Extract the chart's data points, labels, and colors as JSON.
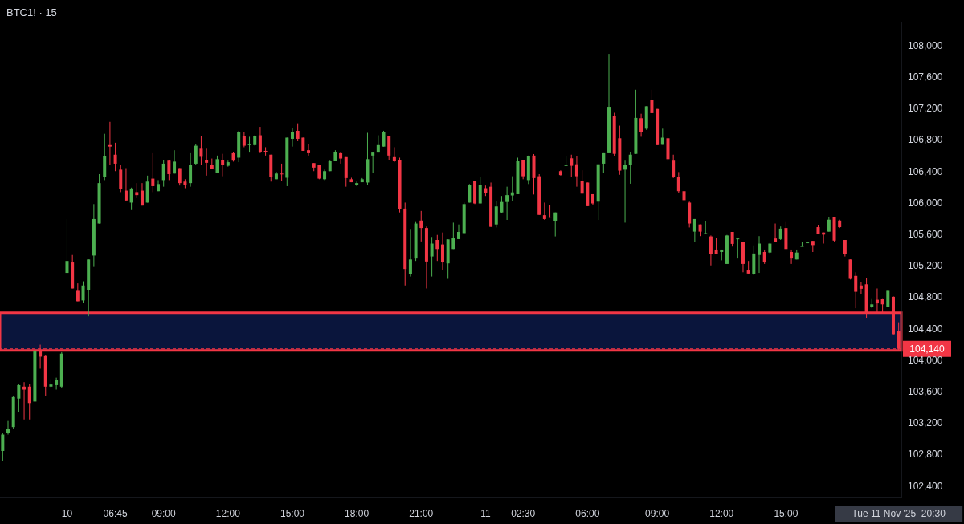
{
  "chart_data": {
    "type": "candlestick",
    "title": "BTC1! · 15",
    "categories": [
      null,
      null,
      null,
      null,
      null,
      null,
      null,
      null,
      null,
      null,
      null,
      null,
      "10",
      null,
      null,
      null,
      null,
      null,
      null,
      null,
      null,
      "06:45",
      null,
      null,
      null,
      null,
      null,
      null,
      null,
      null,
      "09:00",
      null,
      null,
      null,
      null,
      null,
      null,
      null,
      null,
      null,
      null,
      null,
      "12:00",
      null,
      null,
      null,
      null,
      null,
      null,
      null,
      null,
      null,
      null,
      null,
      "15:00",
      null,
      null,
      null,
      null,
      null,
      null,
      null,
      null,
      null,
      null,
      null,
      "18:00",
      null,
      null,
      null,
      null,
      null,
      null,
      null,
      null,
      null,
      null,
      null,
      "21:00",
      null,
      null,
      null,
      null,
      null,
      null,
      null,
      null,
      null,
      null,
      null,
      "11",
      null,
      null,
      null,
      null,
      null,
      null,
      "02:30",
      null,
      null,
      null,
      null,
      null,
      null,
      null,
      null,
      null,
      null,
      null,
      "06:00",
      null,
      null,
      null,
      null,
      null,
      null,
      null,
      null,
      null,
      null,
      null,
      null,
      "09:00",
      null,
      null,
      null,
      null,
      null,
      null,
      null,
      null,
      null,
      null,
      null,
      "12:00",
      null,
      null,
      null,
      null,
      null,
      null,
      null,
      null,
      null,
      null,
      null,
      "15:00",
      null,
      null,
      null,
      null,
      null,
      null,
      null,
      null,
      null,
      null,
      null,
      null,
      null,
      null,
      null,
      null,
      null,
      null,
      null,
      null,
      "Tue 11 Nov '25  20:30"
    ],
    "ohlc": [
      [
        102842,
        103070,
        102709,
        103051
      ],
      [
        103070,
        103223,
        103051,
        103127
      ],
      [
        103146,
        103546,
        103127,
        103527
      ],
      [
        103508,
        103698,
        103337,
        103679
      ],
      [
        103660,
        103717,
        103242,
        103622
      ],
      [
        103660,
        103698,
        103242,
        103451
      ],
      [
        103470,
        104136,
        103470,
        104117
      ],
      [
        104117,
        104193,
        103888,
        104041
      ],
      [
        104048,
        104060,
        103546,
        103660
      ],
      [
        103660,
        103755,
        103641,
        103687
      ],
      [
        103679,
        103774,
        103622,
        103744
      ],
      [
        103660,
        104098,
        103641,
        104079
      ],
      [
        105106,
        105791,
        105106,
        105258
      ],
      [
        105239,
        105334,
        104908,
        104908
      ],
      [
        104878,
        104973,
        104745,
        104745
      ],
      [
        104756,
        104999,
        104726,
        104946
      ],
      [
        104885,
        105277,
        104554,
        105277
      ],
      [
        105327,
        105981,
        105182,
        105791
      ],
      [
        105734,
        106362,
        105734,
        106248
      ],
      [
        106324,
        106875,
        106286,
        106590
      ],
      [
        106731,
        107027,
        106476,
        106712
      ],
      [
        106609,
        106761,
        106400,
        106495
      ],
      [
        106419,
        106476,
        106133,
        106171
      ],
      [
        106152,
        106438,
        106019,
        106027
      ],
      [
        106000,
        106190,
        105905,
        106179
      ],
      [
        106133,
        106248,
        106057,
        106095
      ],
      [
        106152,
        106248,
        105962,
        105962
      ],
      [
        106000,
        106343,
        106000,
        106267
      ],
      [
        106305,
        106628,
        106133,
        106209
      ],
      [
        106145,
        106286,
        106145,
        106236
      ],
      [
        106286,
        106544,
        106202,
        106495
      ],
      [
        106533,
        106544,
        106286,
        106362
      ],
      [
        106369,
        106666,
        106369,
        106521
      ],
      [
        106438,
        106438,
        106217,
        106248
      ],
      [
        106267,
        106297,
        106183,
        106221
      ],
      [
        106248,
        106628,
        106202,
        106483
      ],
      [
        106495,
        106742,
        106476,
        106723
      ],
      [
        106685,
        106849,
        106483,
        106582
      ],
      [
        106540,
        106685,
        106343,
        106506
      ],
      [
        106476,
        106560,
        106426,
        106426
      ],
      [
        106381,
        106598,
        106381,
        106552
      ],
      [
        106540,
        106620,
        106335,
        106476
      ],
      [
        106468,
        106533,
        106457,
        106514
      ],
      [
        106628,
        106647,
        106521,
        106533
      ],
      [
        106571,
        106913,
        106514,
        106894
      ],
      [
        106849,
        106894,
        106704,
        106723
      ],
      [
        106731,
        106837,
        106636,
        106742
      ],
      [
        106731,
        106856,
        106723,
        106849
      ],
      [
        106856,
        106963,
        106628,
        106647
      ],
      [
        106658,
        106704,
        106598,
        106639
      ],
      [
        106609,
        106609,
        106267,
        106324
      ],
      [
        106297,
        106392,
        106297,
        106369
      ],
      [
        106369,
        106495,
        106278,
        106362
      ],
      [
        106316,
        106826,
        106209,
        106826
      ],
      [
        106811,
        106951,
        106712,
        106894
      ],
      [
        106913,
        107008,
        106780,
        106811
      ],
      [
        106826,
        106826,
        106658,
        106658
      ],
      [
        106666,
        106742,
        106598,
        106628
      ],
      [
        106502,
        106502,
        106400,
        106445
      ],
      [
        106476,
        106476,
        106297,
        106305
      ],
      [
        106297,
        106419,
        106286,
        106400
      ],
      [
        106400,
        106533,
        106400,
        106525
      ],
      [
        106525,
        106666,
        106525,
        106647
      ],
      [
        106628,
        106647,
        106495,
        106560
      ],
      [
        106578,
        106578,
        106202,
        106312
      ],
      [
        106297,
        106316,
        106259,
        106259
      ],
      [
        106229,
        106267,
        106209,
        106248
      ],
      [
        106259,
        106312,
        106259,
        106297
      ],
      [
        106255,
        106887,
        106229,
        106552
      ],
      [
        106598,
        106647,
        106381,
        106636
      ],
      [
        106636,
        106856,
        106636,
        106731
      ],
      [
        106712,
        106913,
        106712,
        106902
      ],
      [
        106845,
        106845,
        106544,
        106598
      ],
      [
        106578,
        106704,
        106514,
        106525
      ],
      [
        106544,
        106571,
        105875,
        105913
      ],
      [
        105924,
        106000,
        104946,
        105156
      ],
      [
        105087,
        105665,
        105060,
        105277
      ],
      [
        105289,
        105753,
        105258,
        105734
      ],
      [
        105772,
        105894,
        105506,
        105677
      ],
      [
        105677,
        105696,
        104908,
        105251
      ],
      [
        105315,
        105563,
        105060,
        105479
      ],
      [
        105525,
        105589,
        105258,
        105410
      ],
      [
        105468,
        105620,
        105144,
        105239
      ],
      [
        105227,
        105532,
        105030,
        105532
      ],
      [
        105410,
        105745,
        105410,
        105555
      ],
      [
        105536,
        105722,
        105536,
        105627
      ],
      [
        105612,
        106000,
        105612,
        105981
      ],
      [
        106000,
        106236,
        106000,
        106228
      ],
      [
        106278,
        106278,
        105981,
        105989
      ],
      [
        105989,
        106331,
        105989,
        106221
      ],
      [
        106183,
        106217,
        106084,
        106122
      ],
      [
        106202,
        106255,
        105692,
        105692
      ],
      [
        105722,
        106019,
        105684,
        105951
      ],
      [
        105875,
        106084,
        105867,
        106008
      ],
      [
        106008,
        106202,
        105780,
        106095
      ],
      [
        106091,
        106335,
        106019,
        106130
      ],
      [
        106107,
        106571,
        106107,
        106525
      ],
      [
        106544,
        106544,
        106297,
        106335
      ],
      [
        106286,
        106598,
        106236,
        106590
      ],
      [
        106598,
        106617,
        106103,
        106312
      ],
      [
        106335,
        106362,
        105844,
        105844
      ],
      [
        105840,
        106000,
        105780,
        105791
      ],
      [
        105821,
        105970,
        105806,
        105810
      ],
      [
        105768,
        105875,
        105570,
        105875
      ],
      [
        106400,
        106411,
        106343,
        106350
      ],
      [
        106468,
        106590,
        106468,
        106476
      ],
      [
        106563,
        106609,
        106331,
        106468
      ],
      [
        106487,
        106590,
        106202,
        106335
      ],
      [
        106278,
        106411,
        106114,
        106114
      ],
      [
        106255,
        106255,
        105955,
        105955
      ],
      [
        106107,
        106107,
        105974,
        105989
      ],
      [
        106012,
        106487,
        105780,
        106487
      ],
      [
        106495,
        106628,
        106381,
        106628
      ],
      [
        106628,
        107891,
        106628,
        107218
      ],
      [
        107104,
        107142,
        106590,
        106620
      ],
      [
        106818,
        106978,
        106354,
        106407
      ],
      [
        106419,
        106533,
        105745,
        106476
      ],
      [
        106476,
        106647,
        106240,
        106609
      ],
      [
        106620,
        107435,
        106620,
        107077
      ],
      [
        107073,
        107130,
        106837,
        106894
      ],
      [
        106940,
        107225,
        106925,
        107225
      ],
      [
        107301,
        107435,
        107138,
        107138
      ],
      [
        107191,
        107191,
        106731,
        106731
      ],
      [
        106735,
        106940,
        106735,
        106826
      ],
      [
        106818,
        106837,
        106521,
        106552
      ],
      [
        106533,
        106609,
        106312,
        106331
      ],
      [
        106331,
        106388,
        106126,
        106145
      ],
      [
        106145,
        106145,
        106008,
        106031
      ],
      [
        106000,
        106012,
        105684,
        105734
      ],
      [
        105631,
        105791,
        105498,
        105791
      ],
      [
        105722,
        105722,
        105574,
        105631
      ],
      [
        105608,
        105764,
        105608,
        105612
      ],
      [
        105570,
        105582,
        105201,
        105346
      ],
      [
        105403,
        105555,
        105346,
        105346
      ],
      [
        105372,
        105403,
        105266,
        105403
      ],
      [
        105220,
        105589,
        105220,
        105582
      ],
      [
        105627,
        105627,
        105441,
        105475
      ],
      [
        105540,
        105544,
        105289,
        105544
      ],
      [
        105498,
        105498,
        105114,
        105220
      ],
      [
        105137,
        105258,
        105087,
        105098
      ],
      [
        105087,
        105456,
        105076,
        105353
      ],
      [
        105334,
        105574,
        105106,
        105479
      ],
      [
        105372,
        105403,
        105220,
        105239
      ],
      [
        105365,
        105487,
        105353,
        105479
      ],
      [
        105544,
        105734,
        105498,
        105498
      ],
      [
        105536,
        105696,
        105525,
        105669
      ],
      [
        105677,
        105753,
        105410,
        105410
      ],
      [
        105372,
        105403,
        105220,
        105289
      ],
      [
        105277,
        105403,
        105277,
        105365
      ],
      [
        105441,
        105498,
        105441,
        105448
      ],
      [
        105490,
        105498,
        105487,
        105494
      ],
      [
        105513,
        105513,
        105372,
        105460
      ],
      [
        105688,
        105715,
        105601,
        105601
      ],
      [
        105620,
        105620,
        105479,
        105593
      ],
      [
        105631,
        105821,
        105631,
        105783
      ],
      [
        105821,
        105821,
        105506,
        105517
      ],
      [
        105772,
        105783,
        105677,
        105688
      ],
      [
        105525,
        105525,
        105315,
        105346
      ],
      [
        105277,
        105277,
        105022,
        105030
      ],
      [
        105068,
        105114,
        104657,
        104866
      ],
      [
        104946,
        104992,
        104832,
        104904
      ],
      [
        104961,
        105037,
        104535,
        104592
      ],
      [
        104668,
        104783,
        104657,
        104706
      ],
      [
        104764,
        104908,
        104592,
        104718
      ],
      [
        104775,
        104783,
        104592,
        104706
      ],
      [
        104668,
        104885,
        104668,
        104878
      ],
      [
        104802,
        104809,
        104315,
        104326
      ],
      [
        104364,
        104478,
        104120,
        104140
      ]
    ],
    "colors": [
      "#4caf50",
      "#4caf50",
      "#4caf50",
      "#4caf50",
      "#f23645",
      "#f23645",
      "#4caf50",
      "#f23645",
      "#f23645",
      "#4caf50",
      "#4caf50",
      "#4caf50",
      "#4caf50",
      "#f23645",
      "#f23645",
      "#4caf50",
      "#4caf50",
      "#4caf50",
      "#4caf50",
      "#4caf50",
      "#f23645",
      "#f23645",
      "#f23645",
      "#f23645",
      "#4caf50",
      "#f23645",
      "#f23645",
      "#4caf50",
      "#f23645",
      "#4caf50",
      "#4caf50",
      "#f23645",
      "#4caf50",
      "#f23645",
      "#f23645",
      "#4caf50",
      "#4caf50",
      "#f23645",
      "#f23645",
      "#f23645",
      "#4caf50",
      "#f23645",
      "#4caf50",
      "#f23645",
      "#4caf50",
      "#f23645",
      "#4caf50",
      "#4caf50",
      "#f23645",
      "#f23645",
      "#f23645",
      "#4caf50",
      "#f23645",
      "#4caf50",
      "#4caf50",
      "#f23645",
      "#f23645",
      "#f23645",
      "#f23645",
      "#f23645",
      "#4caf50",
      "#4caf50",
      "#4caf50",
      "#f23645",
      "#f23645",
      "#f23645",
      "#4caf50",
      "#4caf50",
      "#4caf50",
      "#4caf50",
      "#4caf50",
      "#4caf50",
      "#f23645",
      "#f23645",
      "#f23645",
      "#f23645",
      "#4caf50",
      "#4caf50",
      "#f23645",
      "#f23645",
      "#4caf50",
      "#f23645",
      "#f23645",
      "#4caf50",
      "#4caf50",
      "#4caf50",
      "#4caf50",
      "#4caf50",
      "#f23645",
      "#4caf50",
      "#f23645",
      "#f23645",
      "#4caf50",
      "#4caf50",
      "#4caf50",
      "#4caf50",
      "#4caf50",
      "#f23645",
      "#4caf50",
      "#f23645",
      "#f23645",
      "#f23645",
      "#f23645",
      "#4caf50",
      "#f23645",
      "#4caf50",
      "#f23645",
      "#f23645",
      "#f23645",
      "#f23645",
      "#f23645",
      "#4caf50",
      "#4caf50",
      "#4caf50",
      "#f23645",
      "#f23645",
      "#4caf50",
      "#4caf50",
      "#4caf50",
      "#f23645",
      "#4caf50",
      "#f23645",
      "#f23645",
      "#4caf50",
      "#f23645",
      "#f23645",
      "#f23645",
      "#f23645",
      "#f23645",
      "#4caf50",
      "#f23645",
      "#4caf50",
      "#f23645",
      "#f23645",
      "#4caf50",
      "#4caf50",
      "#f23645",
      "#4caf50",
      "#f23645",
      "#f23645",
      "#4caf50",
      "#4caf50",
      "#f23645",
      "#4caf50",
      "#f23645",
      "#4caf50",
      "#f23645",
      "#f23645",
      "#4caf50",
      "#4caf50",
      "#4caf50",
      "#f23645",
      "#f23645",
      "#f23645",
      "#4caf50",
      "#f23645",
      "#f23645",
      "#f23645",
      "#f23645",
      "#f23645",
      "#f23645",
      "#f23645",
      "#4caf50",
      "#f23645",
      "#f23645",
      "#4caf50",
      "#f23645",
      "#f23645"
    ],
    "ylim": [
      102250,
      108290
    ],
    "yticks": [
      {
        "value": 102400,
        "label": "102,400"
      },
      {
        "value": 102800,
        "label": "102,800"
      },
      {
        "value": 103200,
        "label": "103,200"
      },
      {
        "value": 103600,
        "label": "103,600"
      },
      {
        "value": 104000,
        "label": "104,000"
      },
      {
        "value": 104400,
        "label": "104,400"
      },
      {
        "value": 104800,
        "label": "104,800"
      },
      {
        "value": 105200,
        "label": "105,200"
      },
      {
        "value": 105600,
        "label": "105,600"
      },
      {
        "value": 106000,
        "label": "106,000"
      },
      {
        "value": 106400,
        "label": "106,400"
      },
      {
        "value": 106800,
        "label": "106,800"
      },
      {
        "value": 107200,
        "label": "107,200"
      },
      {
        "value": 107600,
        "label": "107,600"
      },
      {
        "value": 108000,
        "label": "108,000"
      }
    ],
    "bands": [
      {
        "axis": "y",
        "from": 104120,
        "to": 104600,
        "color": "#12266e"
      }
    ],
    "ref_lines": [
      {
        "axis": "y",
        "value": 104140,
        "label": "104,140",
        "color": "#f23645",
        "line_style": "dashed"
      }
    ]
  }
}
